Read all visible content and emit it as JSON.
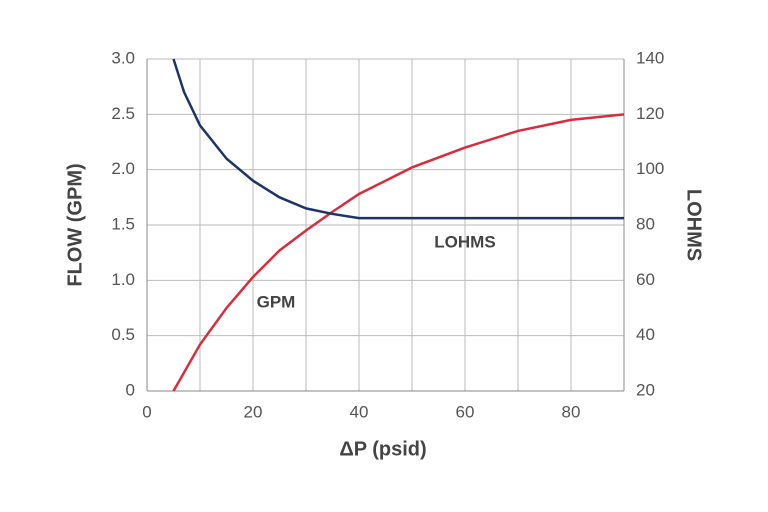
{
  "chart_data": {
    "type": "line",
    "xlabel": "ΔP (psid)",
    "ylabel": "FLOW (GPM)",
    "y2label": "LOHMS",
    "xlim": [
      0,
      90
    ],
    "xticks": [
      0,
      20,
      40,
      60,
      80
    ],
    "xminor": [
      10,
      30,
      50,
      70,
      90
    ],
    "ylim": [
      0,
      3
    ],
    "yticks": [
      0,
      0.5,
      {
        "value": 1,
        "label": "1.0"
      },
      1.5,
      {
        "value": 2,
        "label": "2.0"
      },
      2.5,
      {
        "value": 3,
        "label": "3.0"
      }
    ],
    "y2lim": [
      20,
      140
    ],
    "y2ticks": [
      20,
      40,
      60,
      80,
      100,
      120,
      140
    ],
    "grid": true,
    "series": [
      {
        "name": "GPM",
        "color": "#d62e3c",
        "x": [
          5,
          10,
          15,
          20,
          25,
          30,
          35,
          40,
          50,
          60,
          70,
          80,
          90
        ],
        "values": [
          0,
          0.42,
          0.75,
          1.03,
          1.27,
          1.45,
          1.62,
          1.78,
          2.02,
          2.2,
          2.35,
          2.45,
          2.5
        ]
      },
      {
        "name": "LOHMS",
        "color": "#1d3566",
        "axis": "y2",
        "x": [
          5,
          7,
          10,
          15,
          20,
          25,
          30,
          35,
          40,
          42,
          90
        ],
        "values": [
          140,
          128,
          116,
          104,
          96,
          90,
          86,
          84,
          82.5,
          82.5,
          82.5
        ]
      }
    ]
  }
}
